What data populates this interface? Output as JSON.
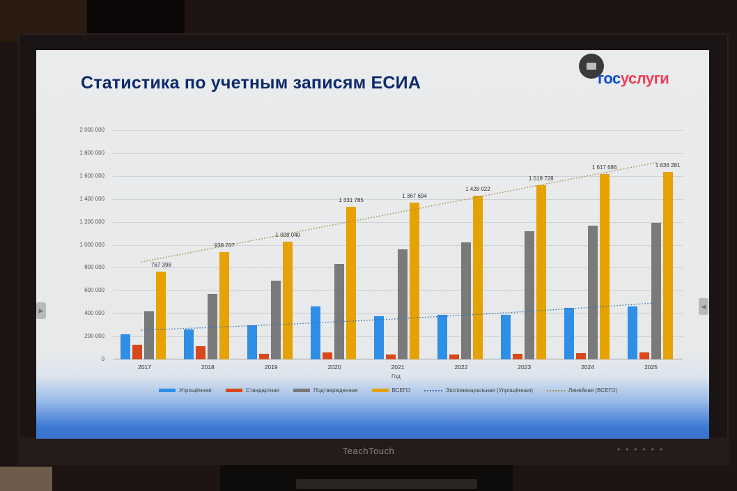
{
  "slide": {
    "title": "Статистика по учетным записям ЕСИА",
    "logo": {
      "part1": "гос",
      "part2": "услуги",
      "colors": {
        "blue": "#0d4cd3",
        "red": "#ee3f58"
      }
    },
    "x_axis_title": "Год",
    "monitor_brand": "TeachTouch"
  },
  "chart_data": {
    "type": "bar",
    "title": "Статистика по учетным записям ЕСИА",
    "xlabel": "Год",
    "ylabel": "",
    "ylim": [
      0,
      2000000
    ],
    "yticks": [
      "0",
      "200 000",
      "400 000",
      "600 000",
      "800 000",
      "1 000 000",
      "1 200 000",
      "1 400 000",
      "1 600 000",
      "1 800 000",
      "2 000 000"
    ],
    "grid": true,
    "legend_position": "bottom",
    "categories": [
      "2017",
      "2018",
      "2019",
      "2020",
      "2021",
      "2022",
      "2023",
      "2024",
      "2025"
    ],
    "series": [
      {
        "name": "Упрощённая",
        "color": "#2f8ee6",
        "values": [
          220000,
          260000,
          300000,
          460000,
          380000,
          390000,
          390000,
          450000,
          460000
        ]
      },
      {
        "name": "Стандартная",
        "color": "#d8481c",
        "values": [
          130000,
          115000,
          50000,
          60000,
          45000,
          45000,
          50000,
          55000,
          60000
        ]
      },
      {
        "name": "Подтвержденная",
        "color": "#7a7a7a",
        "values": [
          420000,
          570000,
          690000,
          830000,
          960000,
          1020000,
          1120000,
          1170000,
          1190000
        ]
      },
      {
        "name": "ВСЕГО",
        "color": "#e5a200",
        "values": [
          767398,
          938707,
          1028040,
          1331785,
          1367694,
          1428022,
          1519728,
          1617686,
          1636281
        ]
      }
    ],
    "data_labels": [
      "767 398",
      "938 707",
      "1 028 040",
      "1 331 785",
      "1 367 694",
      "1 428 022",
      "1 519 728",
      "1 617 686",
      "1 636 281"
    ],
    "trendlines": [
      {
        "name": "Экспоненциальная (Упрощённая)",
        "type": "exponential",
        "color": "#3b6fb0",
        "start": 255000,
        "end": 495000
      },
      {
        "name": "Линейная (ВСЕГО)",
        "type": "linear",
        "color": "#a08a40",
        "start": 850000,
        "end": 1720000
      }
    ]
  },
  "legend": [
    {
      "label": "Упрощённая",
      "kind": "bar",
      "color": "#2f8ee6"
    },
    {
      "label": "Стандартная",
      "kind": "bar",
      "color": "#d8481c"
    },
    {
      "label": "Подтвержденная",
      "kind": "bar",
      "color": "#7a7a7a"
    },
    {
      "label": "ВСЕГО",
      "kind": "bar",
      "color": "#e5a200"
    },
    {
      "label": "Экспоненциальная (Упрощённая)",
      "kind": "dotted",
      "color": "#3b6fb0"
    },
    {
      "label": "Линейная (ВСЕГО)",
      "kind": "dotted",
      "color": "#a08a40"
    }
  ]
}
